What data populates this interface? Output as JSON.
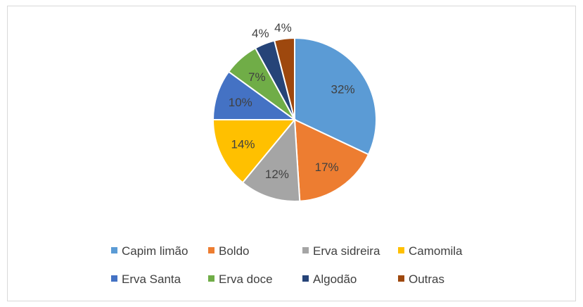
{
  "chart_data": {
    "type": "pie",
    "title": "",
    "categories": [
      "Capim limão",
      "Boldo",
      "Erva sidreira",
      "Camomila",
      "Erva Santa",
      "Erva doce",
      "Algodão",
      "Outras"
    ],
    "values": [
      32,
      17,
      12,
      14,
      10,
      7,
      4,
      4
    ],
    "labels": [
      "32%",
      "17%",
      "12%",
      "14%",
      "10%",
      "7%",
      "4%",
      "4%"
    ],
    "colors": [
      "#5B9BD5",
      "#ED7D31",
      "#A5A5A5",
      "#FFC000",
      "#4472C4",
      "#70AD47",
      "#264478",
      "#9E480E"
    ],
    "legend_position": "bottom"
  }
}
